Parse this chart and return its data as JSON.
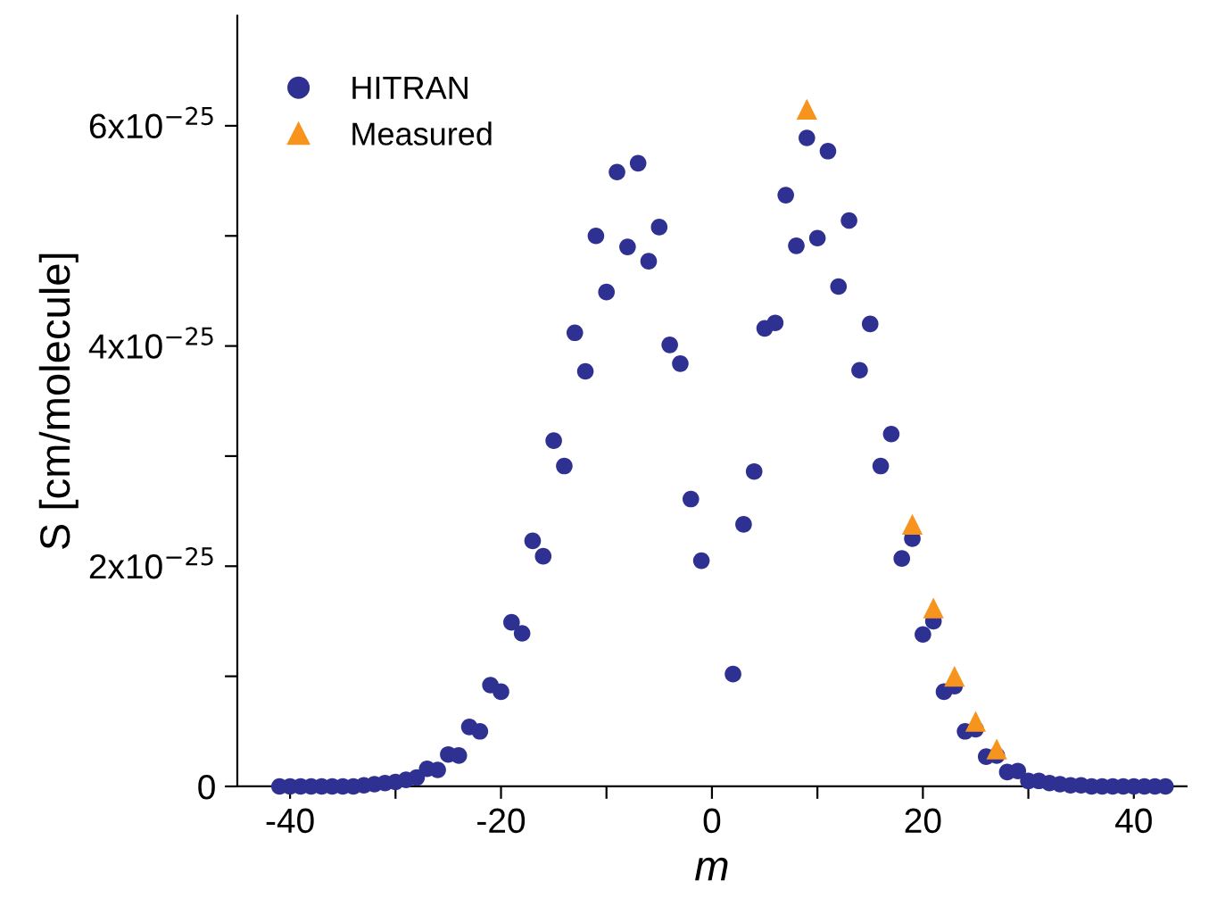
{
  "chart_data": {
    "type": "scatter",
    "xlabel": "m",
    "ylabel": "S [cm/molecule]",
    "xlim": [
      -45,
      45
    ],
    "xticks": [
      -40,
      {
        "value": -30,
        "label": null
      },
      -20,
      {
        "value": -10,
        "label": null
      },
      0,
      {
        "value": 10,
        "label": null
      },
      20,
      {
        "value": 30,
        "label": null
      },
      40
    ],
    "ylim": [
      0,
      7e-25
    ],
    "yticks": [
      0,
      {
        "value": 1e-25,
        "label": null
      },
      {
        "value": 2e-25,
        "label": "2x10$^{−25}$"
      },
      {
        "value": 3e-25,
        "label": null
      },
      {
        "value": 4e-25,
        "label": "4x10$^{−25}$"
      },
      {
        "value": 5e-25,
        "label": null
      },
      {
        "value": 6e-25,
        "label": "6x10$^{−25}$"
      }
    ],
    "grid": false,
    "legend": "top left",
    "series": [
      {
        "name": "HITRAN",
        "color": "#2e3192",
        "marker": "circle",
        "x": [
          -41,
          -40,
          -39,
          -38,
          -37,
          -36,
          -35,
          -34,
          -33,
          -32,
          -31,
          -30,
          -29,
          -28,
          -27,
          -26,
          -25,
          -24,
          -23,
          -22,
          -21,
          -20,
          -19,
          -18,
          -17,
          -16,
          -15,
          -14,
          -13,
          -12,
          -11,
          -10,
          -9,
          -8,
          -7,
          -6,
          -5,
          -4,
          -3,
          -2,
          -1,
          2,
          3,
          4,
          5,
          6,
          7,
          8,
          9,
          10,
          11,
          12,
          13,
          14,
          15,
          16,
          17,
          18,
          19,
          20,
          21,
          22,
          23,
          24,
          25,
          26,
          27,
          28,
          29,
          30,
          31,
          32,
          33,
          34,
          35,
          36,
          37,
          38,
          39,
          40,
          41,
          42,
          43
        ],
        "values": [
          0,
          0,
          0,
          0,
          0,
          0,
          0,
          0,
          1e-27,
          2e-27,
          3e-27,
          4e-27,
          6e-27,
          8e-27,
          1.6e-26,
          1.5e-26,
          2.9e-26,
          2.8e-26,
          5.4e-26,
          5e-26,
          9.2e-26,
          8.6e-26,
          1.49e-25,
          1.39e-25,
          2.23e-25,
          2.09e-25,
          3.14e-25,
          2.91e-25,
          4.12e-25,
          3.77e-25,
          5e-25,
          4.49e-25,
          5.58e-25,
          4.9e-25,
          5.66e-25,
          4.77e-25,
          5.08e-25,
          4.01e-25,
          3.84e-25,
          2.61e-25,
          2.05e-25,
          1.02e-25,
          2.38e-25,
          2.86e-25,
          4.16e-25,
          4.21e-25,
          5.37e-25,
          4.91e-25,
          5.89e-25,
          4.98e-25,
          5.77e-25,
          4.54e-25,
          5.14e-25,
          3.78e-25,
          4.2e-25,
          2.91e-25,
          3.2e-25,
          2.07e-25,
          2.25e-25,
          1.38e-25,
          1.5e-25,
          8.6e-26,
          9.1e-26,
          5e-26,
          5.2e-26,
          2.7e-26,
          2.8e-26,
          1.3e-26,
          1.4e-26,
          5e-27,
          5e-27,
          3e-27,
          2e-27,
          1e-27,
          1e-27,
          0,
          0,
          0,
          0,
          0,
          0,
          0,
          0
        ]
      },
      {
        "name": "Measured",
        "color": "#f7941d",
        "marker": "triangle",
        "x": [
          9,
          19,
          21,
          23,
          25,
          27
        ],
        "values": [
          6.15e-25,
          2.38e-25,
          1.62e-25,
          1e-25,
          5.9e-26,
          3.4e-26
        ]
      }
    ]
  }
}
